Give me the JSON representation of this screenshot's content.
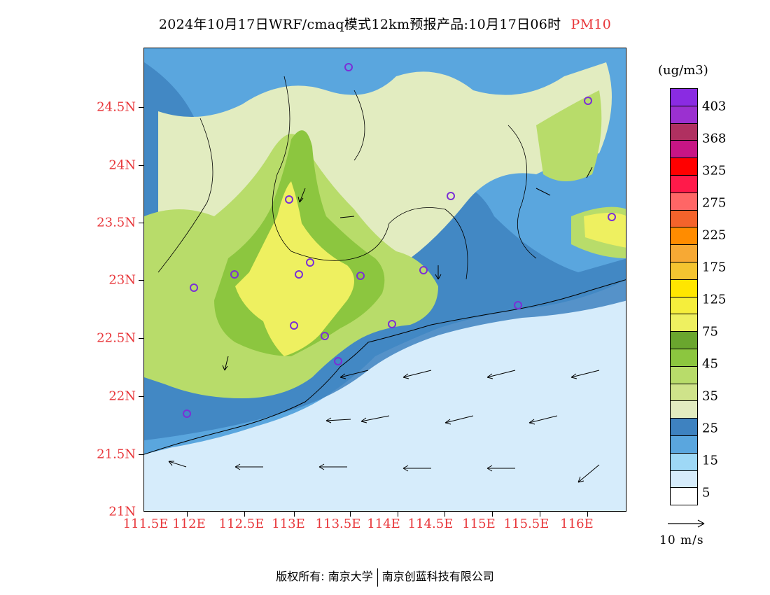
{
  "title": {
    "main": "2024年10月17日WRF/cmaq模式12km预报产品:10月17日06时",
    "pollutant": "PM10"
  },
  "axes": {
    "lat_labels": [
      "24.5N",
      "24N",
      "23.5N",
      "23N",
      "22.5N",
      "22N",
      "21.5N",
      "21N"
    ],
    "lon_labels": [
      "111.5E",
      "112E",
      "112.5E",
      "113E",
      "113.5E",
      "114E",
      "114.5E",
      "115E",
      "115.5E",
      "116E"
    ]
  },
  "colorbar": {
    "unit": "(ug/m3)",
    "labels": [
      "403",
      "368",
      "325",
      "275",
      "225",
      "175",
      "125",
      "75",
      "45",
      "35",
      "25",
      "15",
      "5"
    ],
    "colors": [
      "#8a2be2",
      "#9b30d0",
      "#b03060",
      "#c71585",
      "#ff0000",
      "#ff1a4a",
      "#ff6666",
      "#f4632b",
      "#ff8c00",
      "#f7a934",
      "#f4c430",
      "#ffe600",
      "#f5ee3c",
      "#eef060",
      "#6aa62e",
      "#8cc63f",
      "#b8dc6a",
      "#cfe38a",
      "#e2ecc0",
      "#3e82c0",
      "#5aa6de",
      "#9ed8f6",
      "#d6ecfb",
      "#ffffff"
    ]
  },
  "wind_reference": {
    "label": "10 m/s"
  },
  "markers_color": "#7b2fd6",
  "footer": {
    "left": "版权所有: 南京大学",
    "right": "南京创蓝科技有限公司"
  }
}
